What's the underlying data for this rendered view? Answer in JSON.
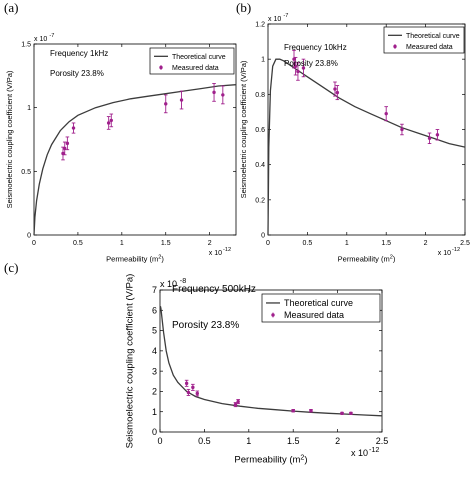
{
  "colors": {
    "curve": "#3c3c3c",
    "marker": "#a0208c",
    "axis": "#000000"
  },
  "chart_data": [
    {
      "type": "scatter",
      "panel_label": "(a)",
      "annotation_lines": [
        "Frequency 1kHz",
        "Porosity 23.8%"
      ],
      "xlabel": "Permeability (m",
      "xlabel_sup": "2",
      "xlabel_end": ")",
      "ylabel": "Seismoelectric coupling coefficient (V/Pa)",
      "x_exponent": "x 10",
      "x_exponent_power": "-12",
      "y_exponent": "x 10",
      "y_exponent_power": "-7",
      "xlim": [
        0,
        2.3
      ],
      "ylim": [
        0,
        1.5
      ],
      "xticks": [
        "0",
        "0.5",
        "1",
        "1.5",
        "2"
      ],
      "yticks": [
        "0",
        "0.5",
        "1",
        "1.5"
      ],
      "legend": [
        "Theoretical curve",
        "Measured data"
      ],
      "theoretical_curve": {
        "x": [
          0.0,
          0.01,
          0.03,
          0.06,
          0.1,
          0.15,
          0.2,
          0.3,
          0.4,
          0.5,
          0.7,
          0.9,
          1.1,
          1.3,
          1.5,
          1.7,
          1.9,
          2.1,
          2.3
        ],
        "y": [
          0.0,
          0.14,
          0.27,
          0.4,
          0.52,
          0.63,
          0.71,
          0.82,
          0.89,
          0.94,
          1.0,
          1.04,
          1.07,
          1.09,
          1.11,
          1.13,
          1.15,
          1.17,
          1.18
        ]
      },
      "measured_data": {
        "x": [
          0.33,
          0.35,
          0.38,
          0.45,
          0.85,
          0.88,
          1.5,
          1.68,
          2.05,
          2.15
        ],
        "y": [
          0.64,
          0.68,
          0.72,
          0.84,
          0.88,
          0.9,
          1.03,
          1.06,
          1.12,
          1.1
        ],
        "error": [
          0.05,
          0.05,
          0.05,
          0.04,
          0.05,
          0.05,
          0.07,
          0.07,
          0.07,
          0.07
        ]
      }
    },
    {
      "type": "scatter",
      "panel_label": "(b)",
      "annotation_lines": [
        "Frequency 10kHz",
        "Porosity 23.8%"
      ],
      "xlabel": "Permeability (m",
      "xlabel_sup": "2",
      "xlabel_end": ")",
      "ylabel": "Seismoelectric coupling coefficient (V/Pa)",
      "x_exponent": "x 10",
      "x_exponent_power": "-12",
      "y_exponent": "x 10",
      "y_exponent_power": "-7",
      "xlim": [
        0,
        2.5
      ],
      "ylim": [
        0,
        1.2
      ],
      "xticks": [
        "0",
        "0.5",
        "1",
        "1.5",
        "2",
        "2.5"
      ],
      "yticks": [
        "0",
        "0.2",
        "0.4",
        "0.6",
        "0.8",
        "1",
        "1.2"
      ],
      "legend": [
        "Theoretical curve",
        "Measured data"
      ],
      "theoretical_curve": {
        "x": [
          0.0,
          0.01,
          0.03,
          0.06,
          0.1,
          0.15,
          0.2,
          0.3,
          0.4,
          0.5,
          0.7,
          0.9,
          1.1,
          1.3,
          1.5,
          1.7,
          1.9,
          2.1,
          2.3,
          2.5
        ],
        "y": [
          0.0,
          0.5,
          0.82,
          0.96,
          1.0,
          1.0,
          0.99,
          0.96,
          0.93,
          0.9,
          0.84,
          0.78,
          0.73,
          0.69,
          0.65,
          0.61,
          0.58,
          0.55,
          0.52,
          0.5
        ]
      },
      "measured_data": {
        "x": [
          0.33,
          0.35,
          0.38,
          0.45,
          0.85,
          0.88,
          1.5,
          1.7,
          2.05,
          2.15
        ],
        "y": [
          1.0,
          0.96,
          0.93,
          0.95,
          0.83,
          0.81,
          0.69,
          0.6,
          0.55,
          0.57
        ],
        "error": [
          0.05,
          0.05,
          0.05,
          0.05,
          0.04,
          0.04,
          0.04,
          0.03,
          0.03,
          0.03
        ]
      }
    },
    {
      "type": "scatter",
      "panel_label": "(c)",
      "annotation_lines": [
        "Frequency 500kHz",
        "Porosity 23.8%"
      ],
      "xlabel": "Permeability (m",
      "xlabel_sup": "2",
      "xlabel_end": ")",
      "ylabel": "Seismoelectric coupling coefficient (V/Pa)",
      "x_exponent": "x 10",
      "x_exponent_power": "-12",
      "y_exponent": "x 10",
      "y_exponent_power": "-8",
      "xlim": [
        0,
        2.5
      ],
      "ylim": [
        0,
        7
      ],
      "xticks": [
        "0",
        "0.5",
        "1",
        "1.5",
        "2",
        "2.5"
      ],
      "yticks": [
        "0",
        "1",
        "2",
        "3",
        "4",
        "5",
        "6",
        "7"
      ],
      "legend": [
        "Theoretical curve",
        "Measured data"
      ],
      "theoretical_curve": {
        "x": [
          0.005,
          0.01,
          0.02,
          0.04,
          0.07,
          0.1,
          0.15,
          0.2,
          0.3,
          0.4,
          0.5,
          0.7,
          0.9,
          1.1,
          1.3,
          1.5,
          1.7,
          1.9,
          2.1,
          2.3,
          2.5
        ],
        "y": [
          6.2,
          6.1,
          5.7,
          4.9,
          4.0,
          3.4,
          2.8,
          2.45,
          2.0,
          1.75,
          1.6,
          1.4,
          1.27,
          1.17,
          1.1,
          1.03,
          0.97,
          0.92,
          0.88,
          0.84,
          0.8
        ]
      },
      "measured_data": {
        "x": [
          0.3,
          0.32,
          0.37,
          0.42,
          0.85,
          0.88,
          1.5,
          1.7,
          2.05,
          2.15
        ],
        "y": [
          2.4,
          1.95,
          2.2,
          1.9,
          1.35,
          1.5,
          1.05,
          1.05,
          0.92,
          0.92
        ],
        "error": [
          0.15,
          0.15,
          0.15,
          0.12,
          0.1,
          0.1,
          0.06,
          0.06,
          0.05,
          0.05
        ]
      }
    }
  ]
}
